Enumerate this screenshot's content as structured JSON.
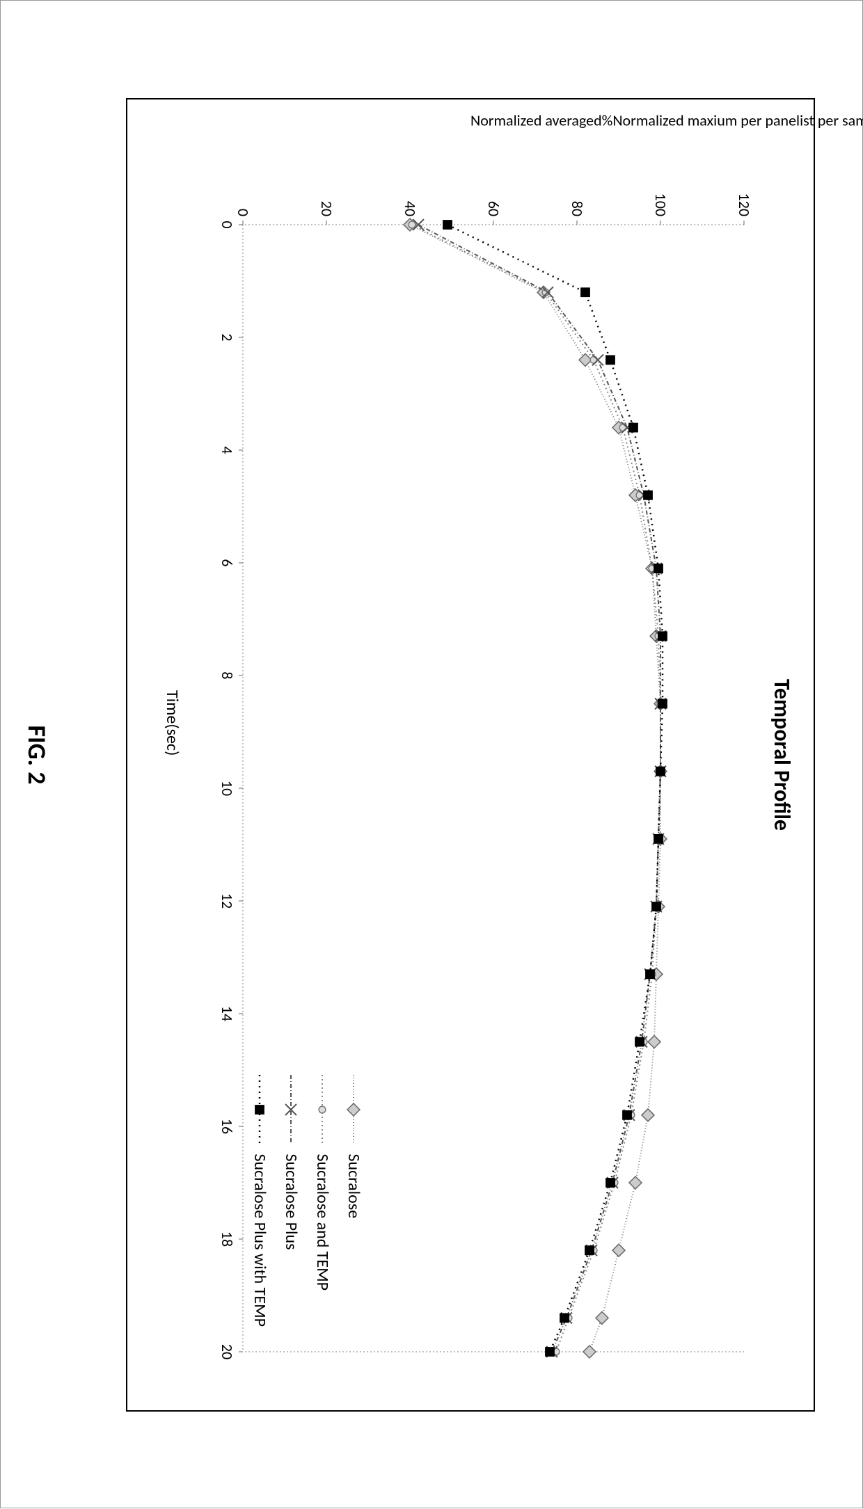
{
  "figure_caption": "FIG. 2",
  "chart": {
    "type": "line",
    "title": "Temporal Profile",
    "title_fontsize": 32,
    "title_fontweight": "bold",
    "xlabel": "Time(sec)",
    "ylabel": "Normalized averaged%Normalized maxium per panelist per sample",
    "label_fontsize": 22,
    "xlim": [
      0,
      20
    ],
    "ylim": [
      0,
      120
    ],
    "xtick_step": 2,
    "ytick_step": 20,
    "xticks": [
      0,
      2,
      4,
      6,
      8,
      10,
      12,
      14,
      16,
      18,
      20
    ],
    "yticks": [
      0,
      20,
      40,
      60,
      80,
      100,
      120
    ],
    "background_color": "#ffffff",
    "border_color": "#000000",
    "grid": false,
    "axis_line_color": "#9a9a9a",
    "axis_line_dash": "2,3",
    "tick_font_size": 22,
    "series": [
      {
        "name": "Sucralose",
        "label": "Sucralose",
        "line_color": "#7a7a7a",
        "line_dash": "1,3",
        "line_width": 2,
        "marker": "diamond",
        "marker_fill": "#cccccc",
        "marker_stroke": "#666666",
        "marker_size": 9,
        "x": [
          0,
          1.2,
          2.4,
          3.6,
          4.8,
          6.1,
          7.3,
          8.5,
          9.7,
          10.9,
          12.1,
          13.3,
          14.5,
          15.8,
          17.0,
          18.2,
          19.4,
          20.0
        ],
        "y": [
          40.0,
          72.0,
          82.0,
          90.0,
          94.0,
          98.0,
          99.0,
          100.0,
          100.0,
          100.0,
          99.5,
          99.0,
          98.5,
          97.0,
          94.0,
          90.0,
          86.0,
          83.0
        ]
      },
      {
        "name": "Sucralose and TEMP",
        "label": "Sucralose and TEMP",
        "line_color": "#8a8a8a",
        "line_dash": "2,4",
        "line_width": 2,
        "marker": "circle",
        "marker_fill": "#dcdcdc",
        "marker_stroke": "#7a7a7a",
        "marker_size": 7,
        "x": [
          0,
          1.2,
          2.4,
          3.6,
          4.8,
          6.1,
          7.3,
          8.5,
          9.7,
          10.9,
          12.1,
          13.3,
          14.5,
          15.8,
          17.0,
          18.2,
          19.4,
          20.0
        ],
        "y": [
          40.5,
          72.5,
          84.0,
          91.0,
          95.0,
          98.0,
          99.5,
          100.0,
          100.0,
          99.5,
          99.0,
          98.0,
          96.0,
          93.0,
          89.0,
          84.0,
          78.0,
          75.0
        ]
      },
      {
        "name": "Sucralose Plus",
        "label": "Sucralose Plus",
        "line_color": "#555555",
        "line_dash": "6,3,1,3",
        "line_width": 2,
        "marker": "x",
        "marker_fill": "none",
        "marker_stroke": "#555555",
        "marker_size": 8,
        "x": [
          0,
          1.2,
          2.4,
          3.6,
          4.8,
          6.1,
          7.3,
          8.5,
          9.7,
          10.9,
          12.1,
          13.3,
          14.5,
          15.8,
          17.0,
          18.2,
          19.4,
          20.0
        ],
        "y": [
          42.0,
          73.0,
          85.0,
          92.0,
          96.0,
          99.0,
          100.0,
          100.0,
          100.0,
          99.5,
          99.0,
          97.5,
          95.5,
          92.5,
          88.5,
          83.5,
          77.5,
          74.0
        ]
      },
      {
        "name": "Sucralose Plus with TEMP",
        "label": "Sucralose Plus with TEMP",
        "line_color": "#000000",
        "line_dash": "2,6",
        "line_width": 2.5,
        "marker": "square",
        "marker_fill": "#000000",
        "marker_stroke": "#000000",
        "marker_size": 8,
        "x": [
          0,
          1.2,
          2.4,
          3.6,
          4.8,
          6.1,
          7.3,
          8.5,
          9.7,
          10.9,
          12.1,
          13.3,
          14.5,
          15.8,
          17.0,
          18.2,
          19.4,
          20.0
        ],
        "y": [
          49.0,
          82.0,
          88.0,
          93.5,
          97.0,
          99.5,
          100.5,
          100.5,
          100.0,
          99.5,
          99.0,
          97.5,
          95.0,
          92.0,
          88.0,
          83.0,
          77.0,
          73.5
        ]
      }
    ],
    "legend_position": "lower-right",
    "legend_fontsize": 24
  }
}
